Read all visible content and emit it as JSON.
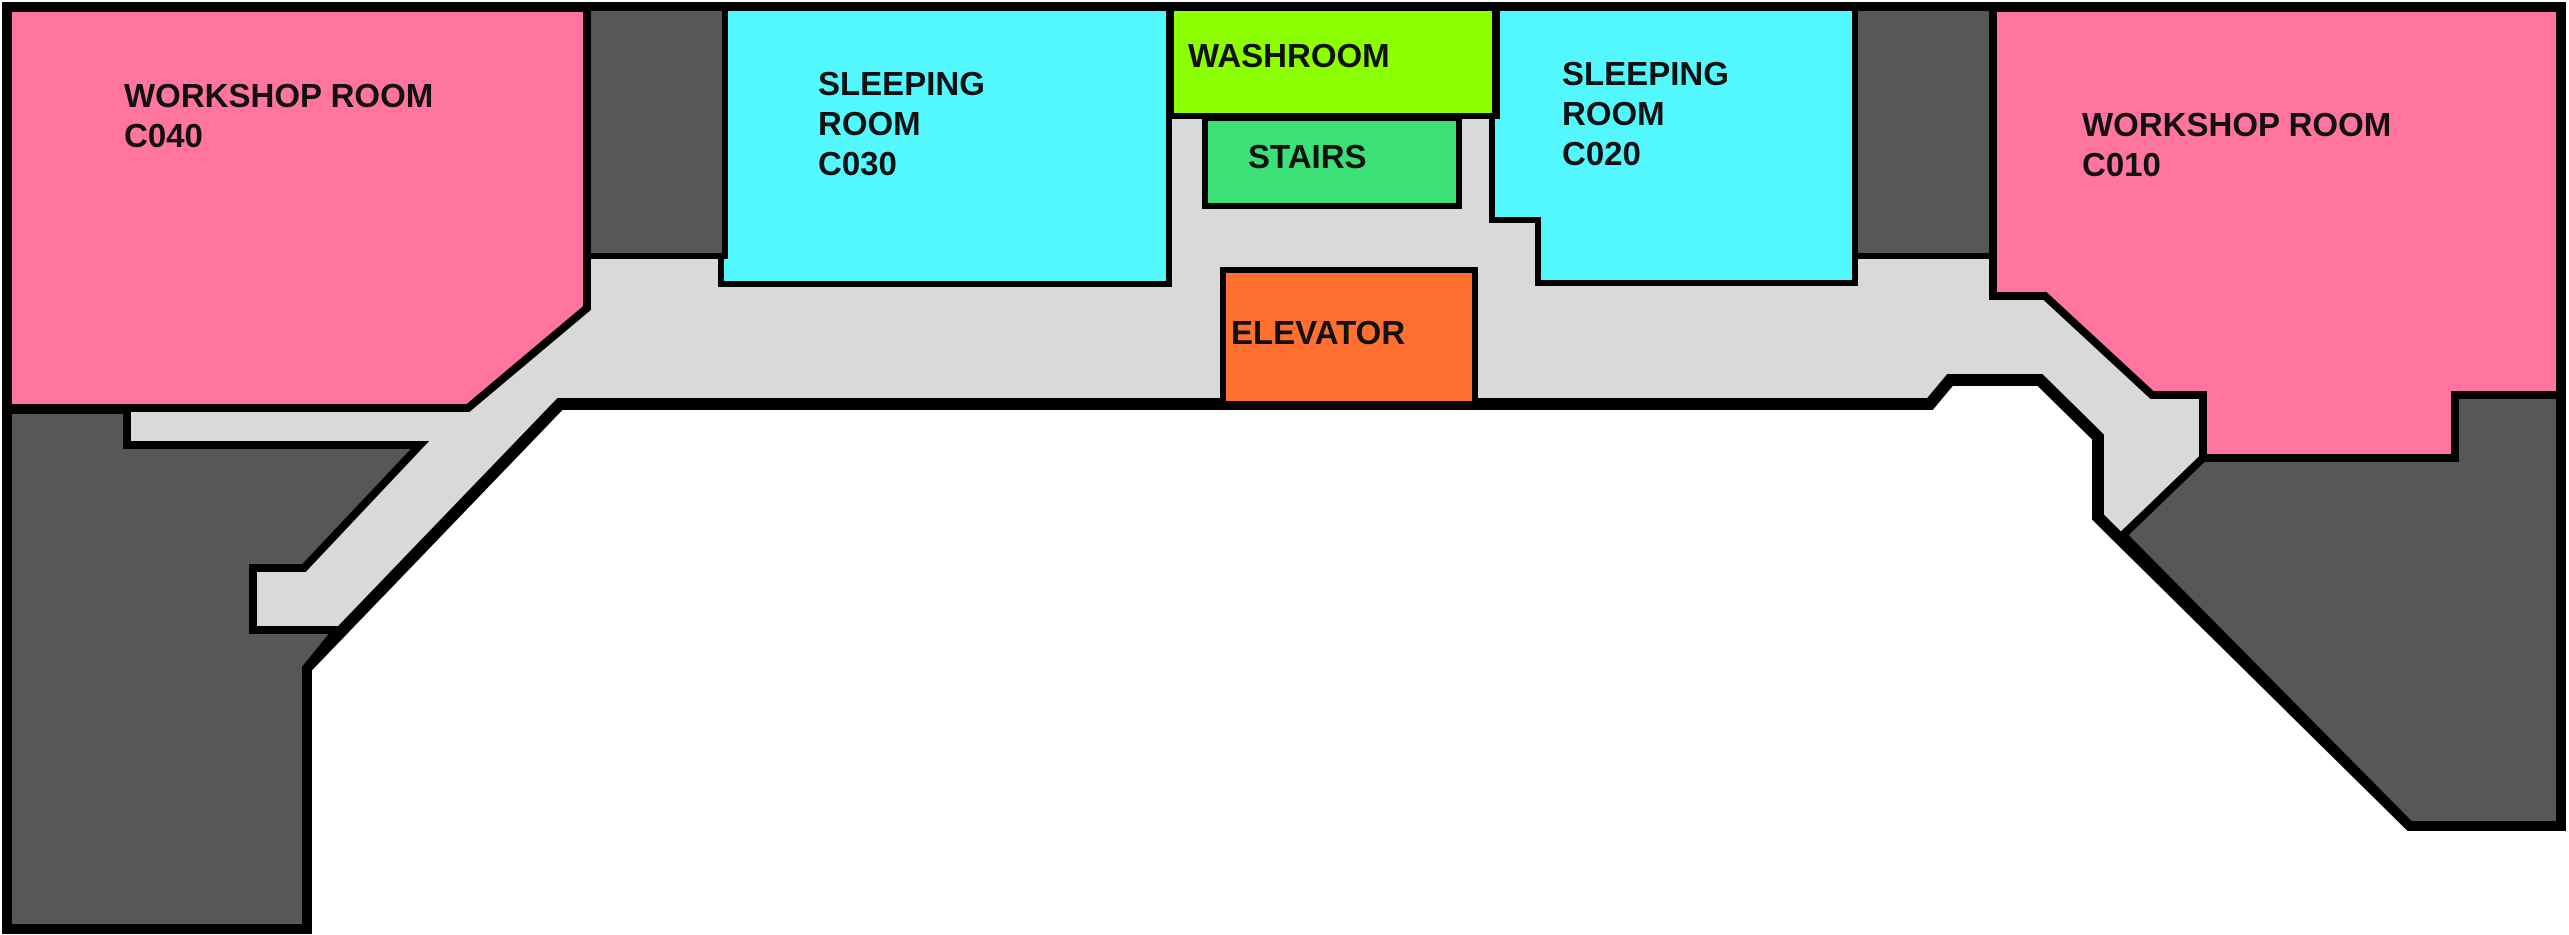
{
  "map": {
    "colors": {
      "outline": "#000000",
      "corridor": "#d9d9d9",
      "service": "#575757",
      "workshop": "#ff759f",
      "sleeping": "#53f8ff",
      "washroom": "#8cff00",
      "stairs": "#3be076",
      "elevator": "#ff6f30",
      "background": "#ffffff"
    },
    "rooms": {
      "workshop_c040": {
        "lines": [
          "WORKSHOP ROOM",
          "C040"
        ],
        "type": "workshop"
      },
      "sleeping_c030": {
        "lines": [
          "SLEEPING",
          "ROOM",
          "C030"
        ],
        "type": "sleeping"
      },
      "washroom": {
        "lines": [
          "WASHROOM"
        ],
        "type": "washroom"
      },
      "stairs": {
        "lines": [
          "STAIRS"
        ],
        "type": "stairs"
      },
      "elevator": {
        "lines": [
          "ELEVATOR"
        ],
        "type": "elevator"
      },
      "sleeping_c020": {
        "lines": [
          "SLEEPING",
          "ROOM",
          "C020"
        ],
        "type": "sleeping"
      },
      "workshop_c010": {
        "lines": [
          "WORKSHOP ROOM",
          "C010"
        ],
        "type": "workshop"
      }
    }
  }
}
